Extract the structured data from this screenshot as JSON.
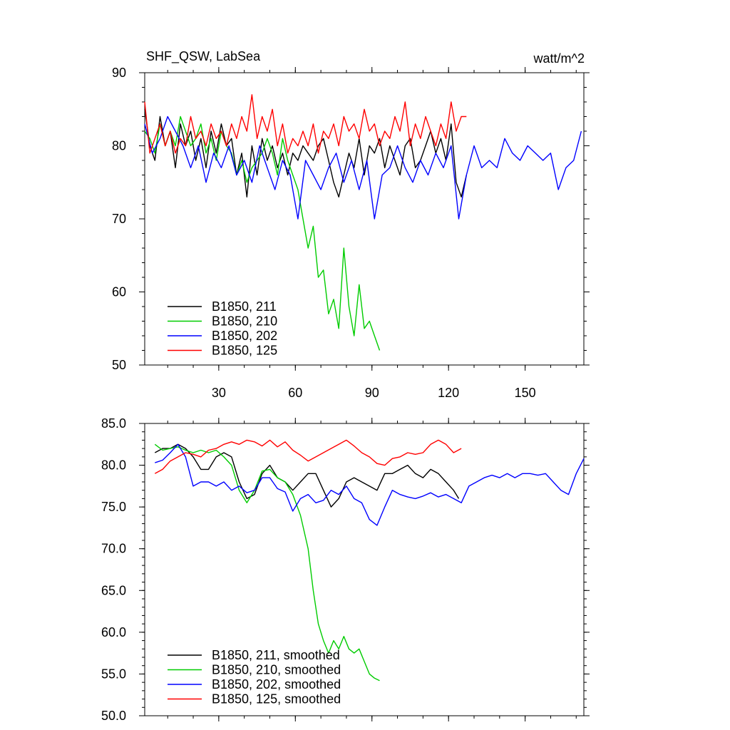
{
  "chart_data": [
    {
      "type": "line",
      "title_left": "SHF_QSW, LabSea",
      "title_right": "watt/m^2",
      "ylim": [
        50,
        90
      ],
      "xlim": [
        1,
        173
      ],
      "yticks": [
        50,
        60,
        70,
        80,
        90
      ],
      "ytick_labels": [
        "50",
        "60",
        "70",
        "80",
        "90"
      ],
      "xticks": [
        30,
        60,
        90,
        120,
        150
      ],
      "xtick_labels": [
        "30",
        "60",
        "90",
        "120",
        "150"
      ],
      "legend": [
        "B1850, 211",
        "B1850, 210",
        "B1850, 202",
        "B1850, 125"
      ],
      "series": [
        {
          "name": "B1850, 211",
          "color": "#000000",
          "x": [
            1,
            3,
            5,
            7,
            9,
            11,
            13,
            15,
            17,
            19,
            21,
            23,
            25,
            27,
            29,
            31,
            33,
            35,
            37,
            39,
            41,
            43,
            45,
            47,
            49,
            51,
            53,
            55,
            57,
            59,
            61,
            63,
            65,
            67,
            69,
            71,
            73,
            75,
            77,
            79,
            81,
            83,
            85,
            87,
            89,
            91,
            93,
            95,
            97,
            99,
            101,
            103,
            105,
            107,
            109,
            111,
            113,
            115,
            117,
            119,
            121,
            123,
            125,
            127
          ],
          "values": [
            85,
            80,
            78,
            84,
            80,
            82,
            77,
            83,
            80,
            82,
            78,
            81,
            77,
            82,
            79,
            83,
            80,
            81,
            76,
            79,
            73,
            80,
            76,
            81,
            78,
            80,
            77,
            79,
            76,
            79,
            78,
            80,
            79,
            78,
            80,
            81,
            78,
            75,
            73,
            76,
            79,
            77,
            81,
            76,
            80,
            79,
            81,
            77,
            80,
            78,
            76,
            80,
            81,
            77,
            78,
            80,
            82,
            79,
            81,
            78,
            83,
            75,
            73,
            76
          ]
        },
        {
          "name": "B1850, 210",
          "color": "#00cc00",
          "x": [
            1,
            3,
            5,
            7,
            9,
            11,
            13,
            15,
            17,
            19,
            21,
            23,
            25,
            27,
            29,
            31,
            33,
            35,
            37,
            39,
            41,
            43,
            45,
            47,
            49,
            51,
            53,
            55,
            57,
            59,
            61,
            63,
            65,
            67,
            69,
            71,
            73,
            75,
            77,
            79,
            81,
            83,
            85,
            87,
            89,
            91,
            93
          ],
          "values": [
            82,
            81,
            79,
            83,
            80,
            82,
            80,
            84,
            82,
            80,
            81,
            83,
            79,
            81,
            78,
            82,
            80,
            79,
            76,
            78,
            75,
            77,
            78,
            79,
            81,
            79,
            76,
            81,
            78,
            76,
            74,
            70,
            66,
            69,
            62,
            63,
            57,
            59,
            55,
            66,
            58,
            54,
            61,
            55,
            56,
            54,
            52
          ]
        },
        {
          "name": "B1850, 202",
          "color": "#0000ff",
          "x": [
            1,
            4,
            7,
            10,
            13,
            16,
            19,
            22,
            25,
            28,
            31,
            34,
            37,
            40,
            43,
            46,
            49,
            52,
            55,
            58,
            61,
            64,
            67,
            70,
            73,
            76,
            79,
            82,
            85,
            88,
            91,
            94,
            97,
            100,
            103,
            106,
            109,
            112,
            115,
            118,
            121,
            124,
            127,
            130,
            133,
            136,
            139,
            142,
            145,
            148,
            151,
            154,
            157,
            160,
            163,
            166,
            169,
            172
          ],
          "values": [
            83,
            79,
            81,
            84,
            82,
            80,
            77,
            80,
            75,
            79,
            77,
            80,
            76,
            78,
            75,
            80,
            77,
            74,
            78,
            76,
            70,
            78,
            76,
            74,
            77,
            79,
            75,
            78,
            74,
            78,
            70,
            76,
            77,
            80,
            77,
            75,
            78,
            76,
            79,
            77,
            80,
            70,
            76,
            80,
            77,
            78,
            77,
            81,
            79,
            78,
            80,
            79,
            78,
            79,
            74,
            77,
            78,
            82
          ]
        },
        {
          "name": "B1850, 125",
          "color": "#ff0000",
          "x": [
            1,
            3,
            5,
            7,
            9,
            11,
            13,
            15,
            17,
            19,
            21,
            23,
            25,
            27,
            29,
            31,
            33,
            35,
            37,
            39,
            41,
            43,
            45,
            47,
            49,
            51,
            53,
            55,
            57,
            59,
            61,
            63,
            65,
            67,
            69,
            71,
            73,
            75,
            77,
            79,
            81,
            83,
            85,
            87,
            89,
            91,
            93,
            95,
            97,
            99,
            101,
            103,
            105,
            107,
            109,
            111,
            113,
            115,
            117,
            119,
            121,
            123,
            125,
            127
          ],
          "values": [
            86,
            79,
            81,
            83,
            80,
            82,
            79,
            81,
            80,
            84,
            81,
            82,
            80,
            83,
            81,
            82,
            80,
            83,
            81,
            84,
            82,
            87,
            81,
            84,
            82,
            85,
            80,
            83,
            79,
            81,
            80,
            82,
            80,
            83,
            79,
            82,
            81,
            83,
            80,
            84,
            82,
            83,
            81,
            85,
            82,
            83,
            80,
            82,
            81,
            84,
            82,
            86,
            80,
            83,
            81,
            84,
            82,
            80,
            83,
            81,
            86,
            82,
            84,
            84
          ]
        }
      ]
    },
    {
      "type": "line",
      "ylim": [
        50,
        85
      ],
      "xlim": [
        1,
        173
      ],
      "yticks": [
        50,
        55,
        60,
        65,
        70,
        75,
        80,
        85
      ],
      "ytick_labels": [
        "50.0",
        "55.0",
        "60.0",
        "65.0",
        "70.0",
        "75.0",
        "80.0",
        "85.0"
      ],
      "legend": [
        "B1850, 211, smoothed",
        "B1850, 210, smoothed",
        "B1850, 202, smoothed",
        "B1850, 125, smoothed"
      ],
      "series": [
        {
          "name": "B1850, 211, smoothed",
          "color": "#000000",
          "x": [
            5,
            8,
            11,
            14,
            17,
            20,
            23,
            26,
            29,
            32,
            35,
            38,
            41,
            44,
            47,
            50,
            53,
            56,
            59,
            62,
            65,
            68,
            71,
            74,
            77,
            80,
            83,
            86,
            89,
            92,
            95,
            98,
            101,
            104,
            107,
            110,
            113,
            116,
            119,
            122,
            124
          ],
          "values": [
            81.5,
            82,
            82,
            82.5,
            82,
            81,
            79.5,
            79.5,
            81,
            81.5,
            81,
            78,
            76,
            76.5,
            79,
            80,
            78.5,
            78,
            77,
            78,
            79,
            79,
            77,
            75,
            76,
            78,
            78.5,
            78,
            77.5,
            77,
            79,
            79,
            79.5,
            80,
            79,
            78.5,
            79.5,
            79,
            78,
            77,
            76
          ]
        },
        {
          "name": "B1850, 210, smoothed",
          "color": "#00cc00",
          "x": [
            5,
            8,
            11,
            14,
            17,
            20,
            23,
            26,
            29,
            32,
            35,
            38,
            41,
            44,
            47,
            50,
            53,
            56,
            59,
            62,
            65,
            67,
            69,
            71,
            73,
            75,
            77,
            79,
            81,
            83,
            85,
            87,
            89,
            91,
            93
          ],
          "values": [
            82.5,
            81.8,
            82,
            82.2,
            81.8,
            81.5,
            81.8,
            81.5,
            81.8,
            81,
            80,
            77,
            75.5,
            77,
            79.3,
            79.5,
            78.5,
            78,
            76.5,
            74,
            70,
            65,
            61,
            59,
            57.5,
            59,
            58,
            59.5,
            58,
            57.5,
            58,
            56.5,
            55,
            54.5,
            54.2
          ]
        },
        {
          "name": "B1850, 202, smoothed",
          "color": "#0000ff",
          "x": [
            5,
            8,
            11,
            14,
            17,
            20,
            23,
            26,
            29,
            32,
            35,
            38,
            41,
            44,
            47,
            50,
            53,
            56,
            59,
            62,
            65,
            68,
            71,
            74,
            77,
            80,
            83,
            86,
            89,
            92,
            95,
            98,
            101,
            104,
            107,
            110,
            113,
            116,
            119,
            122,
            125,
            128,
            131,
            134,
            137,
            140,
            143,
            146,
            149,
            152,
            155,
            158,
            161,
            164,
            167,
            170,
            173
          ],
          "values": [
            80.3,
            80.6,
            81.5,
            82.5,
            81,
            77.5,
            78,
            78,
            77.5,
            78,
            77,
            77.5,
            76.7,
            77,
            78.5,
            78.5,
            77.2,
            76.8,
            74.5,
            76,
            76.5,
            75.5,
            75.8,
            77,
            76.5,
            77.5,
            76,
            75.5,
            73.5,
            72.8,
            75,
            77,
            76.5,
            76.2,
            76,
            76.3,
            76.7,
            76.2,
            76.5,
            76,
            75.5,
            77.5,
            78,
            78.5,
            78.8,
            78.5,
            79,
            78.5,
            79,
            79,
            78.8,
            79,
            78,
            77,
            76.5,
            79,
            80.8
          ]
        },
        {
          "name": "B1850, 125, smoothed",
          "color": "#ff0000",
          "x": [
            5,
            8,
            11,
            14,
            17,
            20,
            23,
            26,
            29,
            32,
            35,
            38,
            41,
            44,
            47,
            50,
            53,
            56,
            59,
            62,
            65,
            68,
            71,
            74,
            77,
            80,
            83,
            86,
            89,
            92,
            95,
            98,
            101,
            104,
            107,
            110,
            113,
            116,
            119,
            122,
            125
          ],
          "values": [
            79,
            79.5,
            80.5,
            81,
            81.5,
            81.3,
            81,
            81.8,
            82,
            82.5,
            82.8,
            82.5,
            83,
            82.8,
            82.3,
            83,
            82.2,
            82.8,
            81.8,
            81.2,
            80.5,
            81,
            81.5,
            82,
            82.5,
            83,
            82.3,
            81.5,
            81,
            80.2,
            80,
            80.8,
            81,
            81.5,
            81.3,
            81.5,
            82.5,
            83,
            82.5,
            81.5,
            82
          ]
        }
      ]
    }
  ]
}
